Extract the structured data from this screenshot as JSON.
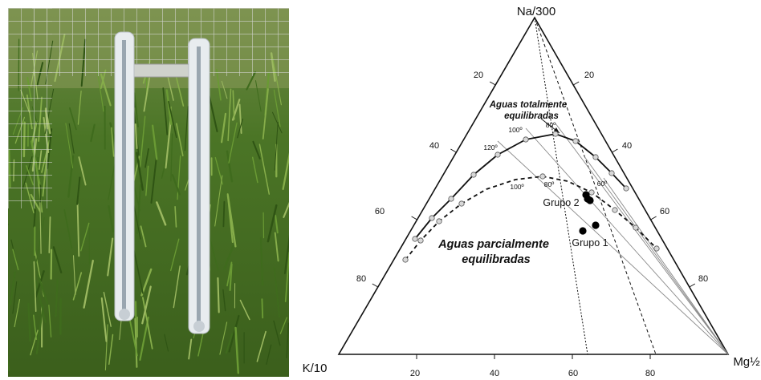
{
  "ternary": {
    "apex_top": "Na/300",
    "apex_left": "K/10",
    "apex_right": "Mg½",
    "left_edge_ticks": [
      "20",
      "40",
      "60",
      "80"
    ],
    "right_edge_ticks": [
      "20",
      "40",
      "60",
      "80"
    ],
    "bottom_ticks": [
      "20",
      "40",
      "60",
      "80"
    ],
    "annotation_full": [
      "Aguas totalmente",
      "equilibradas"
    ],
    "annotation_partial": [
      "Aguas parcialmente",
      "equilibradas"
    ],
    "temp_full": [
      "100º",
      "80º",
      "120º",
      "60º"
    ],
    "temp_partial": [
      "100º",
      "80º"
    ],
    "group2_label": "Grupo 2",
    "group1_label": "Grupo 1",
    "colors": {
      "line": "#111111",
      "marker": "#000000",
      "grid": "#888888",
      "grass": "#4c7a25"
    }
  }
}
